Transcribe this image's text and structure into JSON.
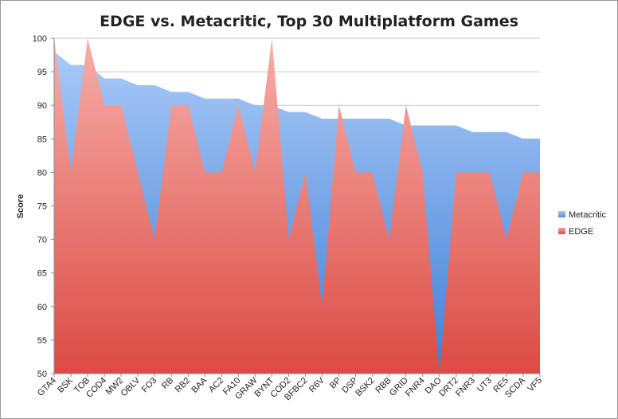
{
  "chart_data": {
    "type": "area",
    "title": "EDGE vs. Metacritic, Top 30 Multiplatform Games",
    "xlabel": "",
    "ylabel": "Score",
    "ylim": [
      50,
      100
    ],
    "yticks": [
      50,
      55,
      60,
      65,
      70,
      75,
      80,
      85,
      90,
      95,
      100
    ],
    "categories": [
      "GTA4",
      "BSK",
      "TOB",
      "COD4",
      "MW2",
      "OBLV",
      "FO3",
      "RB",
      "RB2",
      "BAA",
      "AC2",
      "FA10",
      "GRAW",
      "BYNT",
      "COD2",
      "BFBC2",
      "R6V",
      "BP",
      "DSP",
      "BSK2",
      "RBB",
      "GRID",
      "FNR4",
      "DAO",
      "DRT2",
      "FNR3",
      "UT3",
      "RE5",
      "SCDA",
      "VF5"
    ],
    "series": [
      {
        "name": "Metacritic",
        "color": "#7ea9e6",
        "values": [
          98,
          96,
          96,
          94,
          94,
          93,
          93,
          92,
          92,
          91,
          91,
          91,
          90,
          90,
          89,
          89,
          88,
          88,
          88,
          88,
          88,
          87,
          87,
          87,
          87,
          86,
          86,
          86,
          85,
          85
        ]
      },
      {
        "name": "EDGE",
        "color": "#e3625a",
        "values": [
          100,
          80,
          100,
          90,
          90,
          80,
          70,
          90,
          90,
          80,
          80,
          90,
          80,
          100,
          70,
          80,
          60,
          90,
          80,
          80,
          70,
          90,
          80,
          50,
          80,
          80,
          80,
          70,
          80,
          80
        ]
      }
    ],
    "legend_position": "right",
    "grid": true
  }
}
